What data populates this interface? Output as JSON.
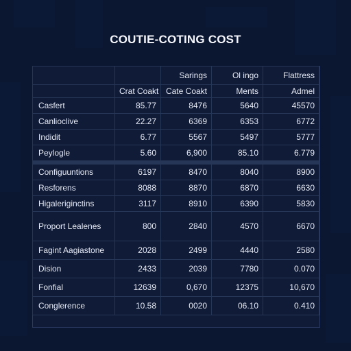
{
  "title": "COUTIE-COTING COST",
  "chart_data": {
    "type": "table",
    "title": "COUTIE-COTING COST",
    "group_headers": [
      "",
      "",
      "Sarings",
      "Ol ingo",
      "Flattress"
    ],
    "sub_headers": [
      "",
      "Crat Coakt",
      "Cate Coakt",
      "Ments",
      "Admel"
    ],
    "rows": [
      {
        "label": "Casfert",
        "values": [
          "85.77",
          "8476",
          "5640",
          "45570"
        ]
      },
      {
        "label": "Canlioclive",
        "values": [
          "22.27",
          "6369",
          "6353",
          "6772"
        ]
      },
      {
        "label": "Indidit",
        "values": [
          "6.77",
          "5567",
          "5497",
          "5777"
        ]
      },
      {
        "label": "Peylogle",
        "values": [
          "5.60",
          "6,900",
          "85.10",
          "6.779"
        ]
      },
      {
        "label": "Configuuntions",
        "values": [
          "6197",
          "8470",
          "8040",
          "8900"
        ]
      },
      {
        "label": "Resforens",
        "values": [
          "8088",
          "8870",
          "6870",
          "6630"
        ]
      },
      {
        "label": "Higaleriginctins",
        "values": [
          "3117",
          "8910",
          "6390",
          "5830"
        ]
      },
      {
        "label": "Proport Lealenes",
        "values": [
          "800",
          "2840",
          "4570",
          "6670"
        ]
      },
      {
        "label": "Fagint Aagiastone",
        "values": [
          "2028",
          "2499",
          "4440",
          "2580"
        ]
      },
      {
        "label": "Dision",
        "values": [
          "2433",
          "2039",
          "7780",
          "0.070"
        ]
      },
      {
        "label": "Fonfial",
        "values": [
          "12639",
          "0,670",
          "12375",
          "10,670"
        ]
      },
      {
        "label": "Conglerence",
        "values": [
          "10.58",
          "0020",
          "06.10",
          "0.410"
        ]
      }
    ]
  }
}
